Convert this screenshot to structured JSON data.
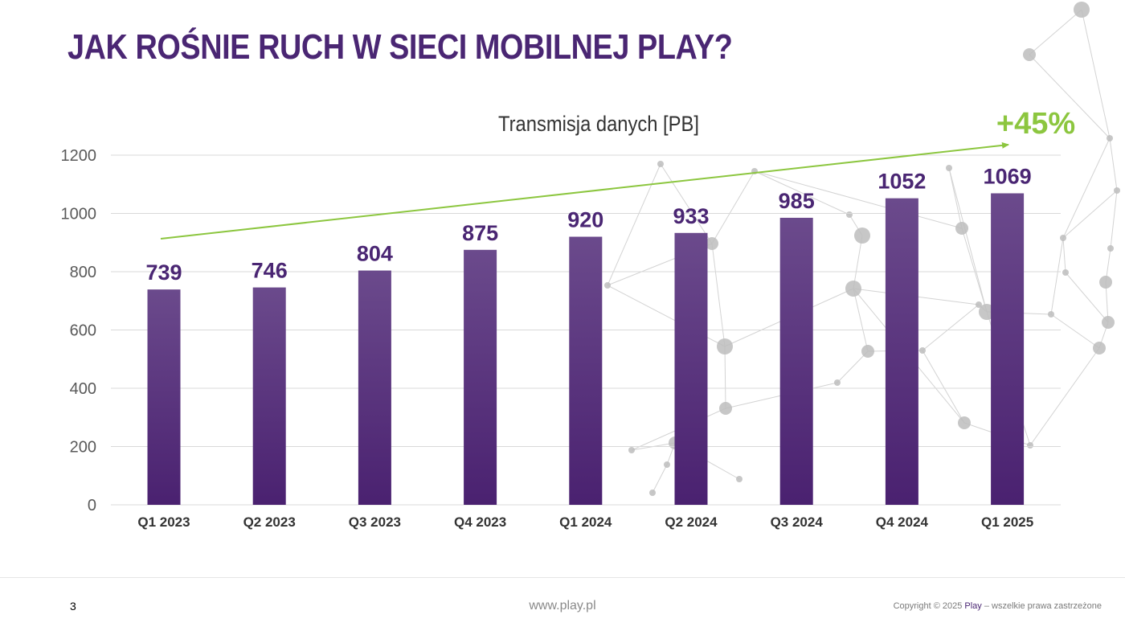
{
  "slide": {
    "title": "JAK ROŚNIE RUCH W SIECI MOBILNEJ PLAY?",
    "page_number": "3",
    "url": "www.play.pl",
    "copyright_prefix": "Copyright © 2025 ",
    "copyright_brand": "Play",
    "copyright_suffix": " – wszelkie prawa zastrzeżone"
  },
  "colors": {
    "title": "#4a2673",
    "bar_top": "#6b4a8c",
    "bar_bottom": "#4a2170",
    "growth": "#8cc63f",
    "grid": "#d9d9d9",
    "decoration": "#bdbdbd"
  },
  "chart_data": {
    "type": "bar",
    "title": "Transmisja danych [PB]",
    "categories": [
      "Q1 2023",
      "Q2 2023",
      "Q3 2023",
      "Q4 2023",
      "Q1 2024",
      "Q2 2024",
      "Q3 2024",
      "Q4 2024",
      "Q1 2025"
    ],
    "values": [
      739,
      746,
      804,
      875,
      920,
      933,
      985,
      1052,
      1069
    ],
    "data_labels": [
      "739",
      "746",
      "804",
      "875",
      "920",
      "933",
      "985",
      "1052",
      "1069"
    ],
    "yticks": [
      "0",
      "200",
      "400",
      "600",
      "800",
      "1000",
      "1200"
    ],
    "ylim": [
      0,
      1200
    ],
    "grid": true,
    "legend": "none",
    "annotation": {
      "text": "+45%",
      "type": "arrow",
      "from_category": "Q1 2023",
      "to_category": "Q1 2025"
    }
  }
}
